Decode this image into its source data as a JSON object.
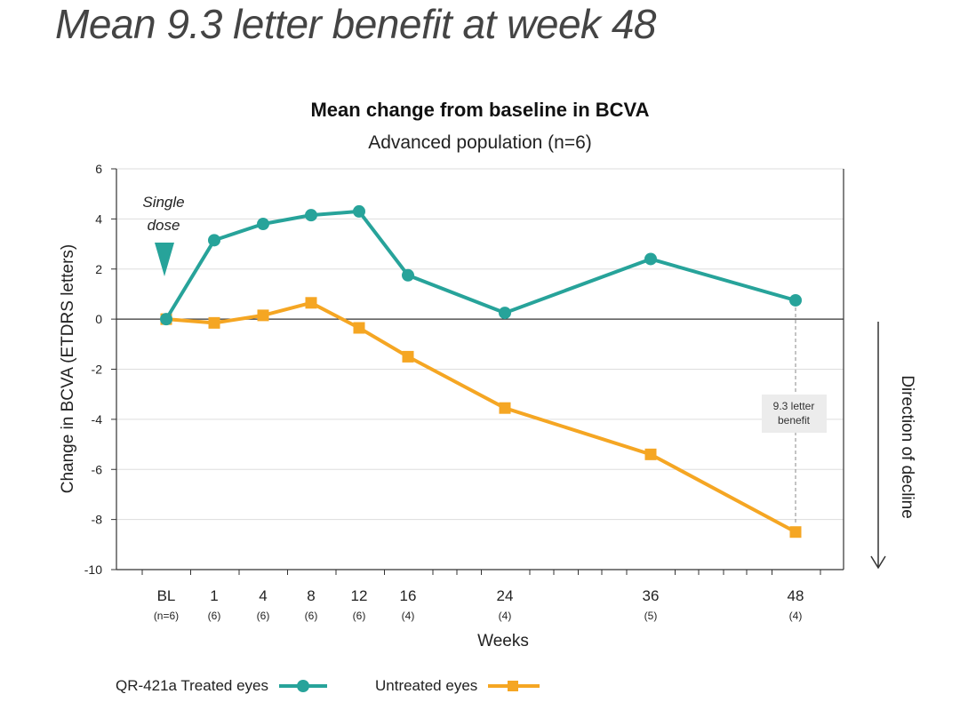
{
  "headline": "Mean 9.3 letter benefit at week 48",
  "colors": {
    "treated": "#27a39a",
    "untreated": "#f5a623",
    "axis": "#333333",
    "grid": "#dddddd"
  },
  "chart_data": {
    "type": "line",
    "title": "Mean change from baseline in BCVA",
    "subtitle": "Advanced population (n=6)",
    "xlabel": "Weeks",
    "ylabel": "Change in BCVA (ETDRS letters)",
    "ylim": [
      -10,
      6
    ],
    "yticks": [
      6,
      4,
      2,
      0,
      -2,
      -4,
      -6,
      -8,
      -10
    ],
    "ytick_labels": [
      "6",
      "4",
      "2",
      "0",
      "-2",
      "-4",
      "-6",
      "-8",
      "-10"
    ],
    "xticks": [
      "BL",
      "1",
      "4",
      "8",
      "12",
      "16",
      "24",
      "36",
      "48"
    ],
    "xtick_n": [
      "(n=6)",
      "(6)",
      "(6)",
      "(6)",
      "(6)",
      "(4)",
      "(4)",
      "(5)",
      "(4)"
    ],
    "grid": true,
    "series": [
      {
        "name": "QR-421a Treated eyes",
        "color": "#27a39a",
        "marker": "circle",
        "values": [
          0,
          3.15,
          3.8,
          4.15,
          4.3,
          1.75,
          0.25,
          2.4,
          0.75
        ]
      },
      {
        "name": "Untreated eyes",
        "color": "#f5a623",
        "marker": "square",
        "values": [
          0,
          -0.15,
          0.15,
          0.65,
          -0.35,
          -1.5,
          -3.55,
          -5.4,
          -8.5
        ]
      }
    ],
    "annotations": {
      "dose_line1": "Single",
      "dose_line2": "dose",
      "benefit_line1": "9.3 letter",
      "benefit_line2": "benefit",
      "direction": "Direction of decline"
    },
    "legend": {
      "position": "bottom-left"
    }
  }
}
